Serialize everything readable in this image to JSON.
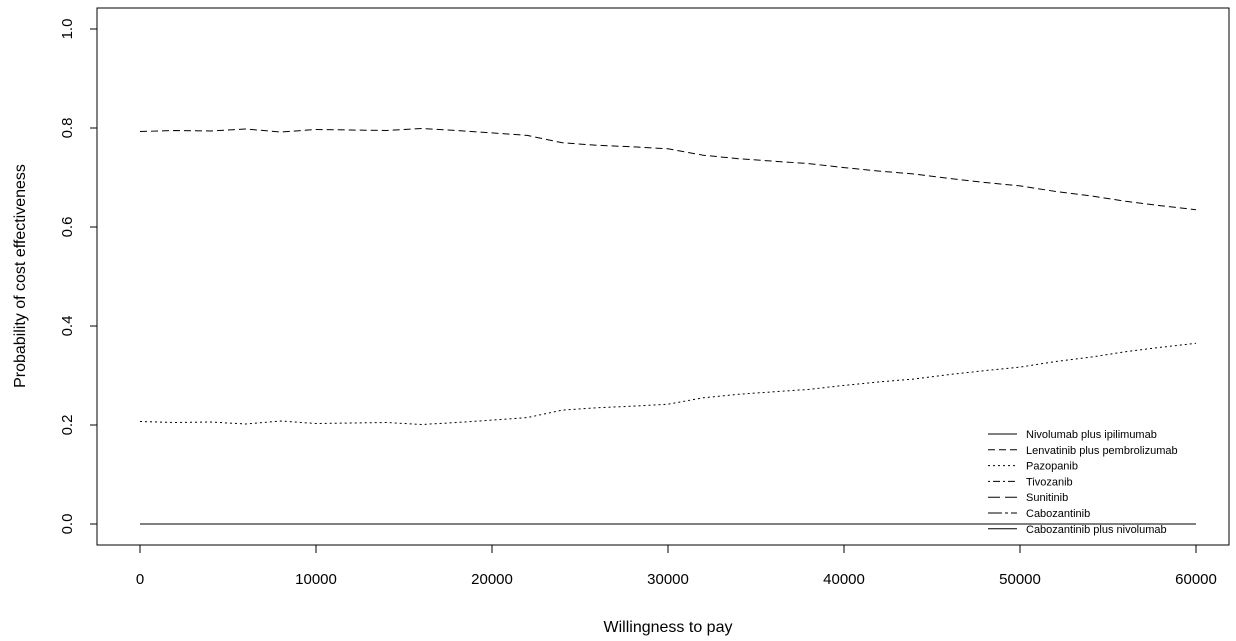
{
  "chart_data": {
    "type": "line",
    "title": "",
    "xlabel": "Willingness to pay",
    "ylabel": "Probability of cost effectiveness",
    "xlim": [
      0,
      60000
    ],
    "ylim": [
      0,
      1
    ],
    "x_ticks": [
      0,
      10000,
      20000,
      30000,
      40000,
      50000,
      60000
    ],
    "x_tick_labels": [
      "0",
      "10000",
      "20000",
      "30000",
      "40000",
      "50000",
      "60000"
    ],
    "y_ticks": [
      0,
      0.2,
      0.4,
      0.6,
      0.8,
      1.0
    ],
    "y_tick_labels": [
      "0.0",
      "0.2",
      "0.4",
      "0.6",
      "0.8",
      "1.0"
    ],
    "grid": false,
    "legend_position": "bottom-right",
    "x": [
      0,
      2000,
      4000,
      6000,
      8000,
      10000,
      12000,
      14000,
      16000,
      18000,
      20000,
      22000,
      24000,
      26000,
      28000,
      30000,
      32000,
      34000,
      36000,
      38000,
      40000,
      42000,
      44000,
      46000,
      48000,
      50000,
      52000,
      54000,
      56000,
      58000,
      60000
    ],
    "series": [
      {
        "name": "Nivolumab plus ipilimumab",
        "dash": "",
        "values": [
          0,
          0,
          0,
          0,
          0,
          0,
          0,
          0,
          0,
          0,
          0,
          0,
          0,
          0,
          0,
          0,
          0,
          0,
          0,
          0,
          0,
          0,
          0,
          0,
          0,
          0,
          0,
          0,
          0,
          0,
          0
        ]
      },
      {
        "name": "Lenvatinib plus pembrolizumab",
        "dash": "7 4",
        "values": [
          0.793,
          0.795,
          0.794,
          0.798,
          0.792,
          0.797,
          0.796,
          0.795,
          0.799,
          0.795,
          0.79,
          0.785,
          0.77,
          0.765,
          0.762,
          0.758,
          0.745,
          0.738,
          0.733,
          0.728,
          0.72,
          0.713,
          0.707,
          0.698,
          0.69,
          0.683,
          0.672,
          0.663,
          0.652,
          0.643,
          0.635
        ]
      },
      {
        "name": "Pazopanib",
        "dash": "2 3",
        "values": [
          0.207,
          0.205,
          0.206,
          0.202,
          0.208,
          0.203,
          0.204,
          0.205,
          0.201,
          0.205,
          0.21,
          0.215,
          0.23,
          0.235,
          0.238,
          0.242,
          0.255,
          0.262,
          0.267,
          0.272,
          0.28,
          0.287,
          0.293,
          0.302,
          0.31,
          0.317,
          0.328,
          0.337,
          0.348,
          0.357,
          0.365
        ]
      },
      {
        "name": "Tivozanib",
        "dash": "2 3 7 3",
        "values": [
          0,
          0,
          0,
          0,
          0,
          0,
          0,
          0,
          0,
          0,
          0,
          0,
          0,
          0,
          0,
          0,
          0,
          0,
          0,
          0,
          0,
          0,
          0,
          0,
          0,
          0,
          0,
          0,
          0,
          0,
          0
        ]
      },
      {
        "name": "Sunitinib",
        "dash": "12 5",
        "values": [
          0,
          0,
          0,
          0,
          0,
          0,
          0,
          0,
          0,
          0,
          0,
          0,
          0,
          0,
          0,
          0,
          0,
          0,
          0,
          0,
          0,
          0,
          0,
          0,
          0,
          0,
          0,
          0,
          0,
          0,
          0
        ]
      },
      {
        "name": "Cabozantinib",
        "dash": "14 3 3 3",
        "values": [
          0,
          0,
          0,
          0,
          0,
          0,
          0,
          0,
          0,
          0,
          0,
          0,
          0,
          0,
          0,
          0,
          0,
          0,
          0,
          0,
          0,
          0,
          0,
          0,
          0,
          0,
          0,
          0,
          0,
          0,
          0
        ]
      },
      {
        "name": "Cabozantinib plus nivolumab",
        "dash": "",
        "values": [
          0,
          0,
          0,
          0,
          0,
          0,
          0,
          0,
          0,
          0,
          0,
          0,
          0,
          0,
          0,
          0,
          0,
          0,
          0,
          0,
          0,
          0,
          0,
          0,
          0,
          0,
          0,
          0,
          0,
          0,
          0
        ]
      }
    ]
  }
}
